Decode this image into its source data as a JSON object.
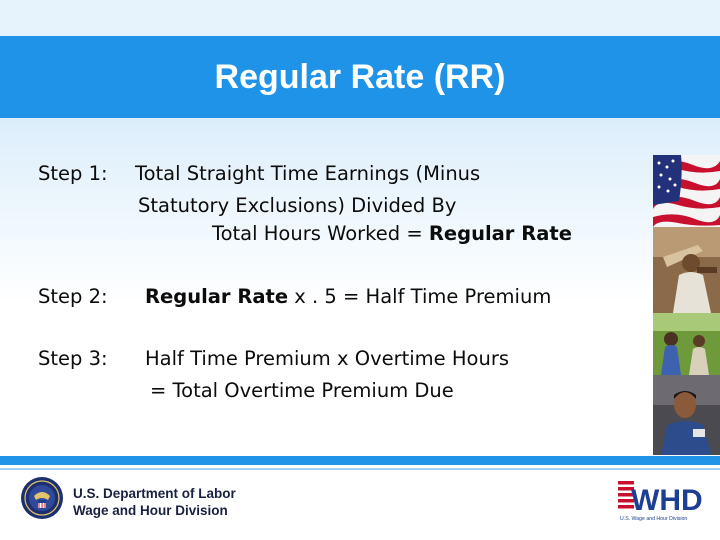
{
  "title": "Regular Rate (RR)",
  "steps": {
    "step1": {
      "label": "Step 1:",
      "line1": "Total Straight Time Earnings (Minus",
      "line2": "Statutory Exclusions) Divided By",
      "line3_plain": "Total Hours Worked = ",
      "line3_bold": "Regular Rate"
    },
    "step2": {
      "label": "Step 2:",
      "bold": "Regular Rate",
      "rest": " x . 5 = Half Time Premium"
    },
    "step3": {
      "label": "Step 3:",
      "line1": "Half Time Premium x Overtime Hours",
      "line2": "= Total Overtime Premium Due"
    }
  },
  "footer": {
    "line1": "U.S. Department of Labor",
    "line2": "Wage and Hour Division",
    "logo_text": "WHD",
    "logo_subtext": "U.S. Wage and Hour Division"
  },
  "colors": {
    "band": "#1f93e8",
    "band_light": "#e6f3fc",
    "footer_text": "#1a2040",
    "logo_red": "#c8102e",
    "logo_blue": "#1c3f94"
  },
  "icons": {
    "seal": "dol-seal-icon",
    "whd_logo": "whd-logo-icon"
  }
}
